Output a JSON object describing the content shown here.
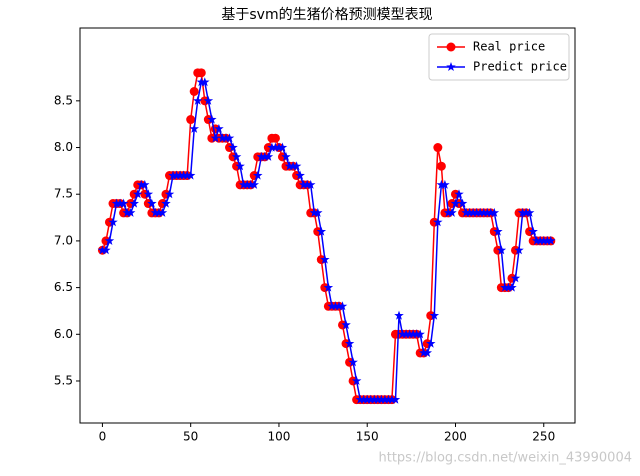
{
  "chart_data": {
    "type": "line",
    "title": "基于svm的生猪价格预测模型表现",
    "watermark": "https://blog.csdn.net/weixin_43990004",
    "x": [
      0,
      2,
      4,
      6,
      8,
      10,
      12,
      14,
      16,
      18,
      20,
      22,
      24,
      26,
      28,
      30,
      32,
      34,
      36,
      38,
      40,
      42,
      44,
      46,
      48,
      50,
      52,
      54,
      56,
      58,
      60,
      62,
      64,
      66,
      68,
      70,
      72,
      74,
      76,
      78,
      80,
      82,
      84,
      86,
      88,
      90,
      92,
      94,
      96,
      98,
      100,
      102,
      104,
      106,
      108,
      110,
      112,
      114,
      116,
      118,
      120,
      122,
      124,
      126,
      128,
      130,
      132,
      134,
      136,
      138,
      140,
      142,
      144,
      146,
      148,
      150,
      152,
      154,
      156,
      158,
      160,
      162,
      164,
      166,
      168,
      170,
      172,
      174,
      176,
      178,
      180,
      182,
      184,
      186,
      188,
      190,
      192,
      194,
      196,
      198,
      200,
      202,
      204,
      206,
      208,
      210,
      212,
      214,
      216,
      218,
      220,
      222,
      224,
      226,
      228,
      230,
      232,
      234,
      236,
      238,
      240,
      242,
      244,
      246,
      248,
      250,
      252,
      254
    ],
    "series": [
      {
        "name": "Real price",
        "color": "#ff0000",
        "marker": "circle",
        "values": [
          6.9,
          7.0,
          7.2,
          7.4,
          7.4,
          7.4,
          7.3,
          7.3,
          7.4,
          7.5,
          7.6,
          7.6,
          7.5,
          7.4,
          7.3,
          7.3,
          7.3,
          7.4,
          7.5,
          7.7,
          7.7,
          7.7,
          7.7,
          7.7,
          7.7,
          8.3,
          8.6,
          8.8,
          8.8,
          8.5,
          8.3,
          8.1,
          8.2,
          8.1,
          8.1,
          8.1,
          8.0,
          7.9,
          7.8,
          7.6,
          7.6,
          7.6,
          7.6,
          7.7,
          7.9,
          7.9,
          7.9,
          8.0,
          8.1,
          8.1,
          8.0,
          7.9,
          7.8,
          7.8,
          7.8,
          7.7,
          7.6,
          7.6,
          7.6,
          7.3,
          7.3,
          7.1,
          6.8,
          6.5,
          6.3,
          6.3,
          6.3,
          6.3,
          6.1,
          5.9,
          5.7,
          5.5,
          5.3,
          5.3,
          5.3,
          5.3,
          5.3,
          5.3,
          5.3,
          5.3,
          5.3,
          5.3,
          5.3,
          6.0,
          6.0,
          6.0,
          6.0,
          6.0,
          6.0,
          6.0,
          5.8,
          5.8,
          5.9,
          6.2,
          7.2,
          8.0,
          7.8,
          7.3,
          7.3,
          7.4,
          7.5,
          7.4,
          7.3,
          7.3,
          7.3,
          7.3,
          7.3,
          7.3,
          7.3,
          7.3,
          7.3,
          7.1,
          6.9,
          6.5,
          6.5,
          6.5,
          6.6,
          6.9,
          7.3,
          7.3,
          7.3,
          7.1,
          7.0,
          7.0,
          7.0,
          7.0,
          7.0,
          7.0
        ]
      },
      {
        "name": "Predict price",
        "color": "#0000ff",
        "marker": "star",
        "values": [
          6.9,
          6.9,
          7.0,
          7.2,
          7.4,
          7.4,
          7.4,
          7.3,
          7.3,
          7.4,
          7.5,
          7.6,
          7.6,
          7.5,
          7.4,
          7.3,
          7.3,
          7.3,
          7.4,
          7.5,
          7.7,
          7.7,
          7.7,
          7.7,
          7.7,
          7.7,
          8.2,
          8.5,
          8.7,
          8.7,
          8.5,
          8.3,
          8.1,
          8.2,
          8.1,
          8.1,
          8.1,
          8.0,
          7.9,
          7.8,
          7.6,
          7.6,
          7.6,
          7.6,
          7.7,
          7.9,
          7.9,
          7.9,
          8.0,
          8.0,
          8.0,
          8.0,
          7.9,
          7.8,
          7.8,
          7.8,
          7.7,
          7.6,
          7.6,
          7.6,
          7.3,
          7.3,
          7.1,
          6.8,
          6.5,
          6.3,
          6.3,
          6.3,
          6.3,
          6.1,
          5.9,
          5.7,
          5.5,
          5.3,
          5.3,
          5.3,
          5.3,
          5.3,
          5.3,
          5.3,
          5.3,
          5.3,
          5.3,
          5.3,
          6.2,
          6.0,
          6.0,
          6.0,
          6.0,
          6.0,
          6.0,
          5.8,
          5.8,
          5.9,
          6.2,
          7.2,
          7.6,
          7.6,
          7.3,
          7.3,
          7.4,
          7.5,
          7.4,
          7.3,
          7.3,
          7.3,
          7.3,
          7.3,
          7.3,
          7.3,
          7.3,
          7.3,
          7.1,
          6.9,
          6.5,
          6.5,
          6.5,
          6.6,
          6.9,
          7.3,
          7.3,
          7.3,
          7.1,
          7.0,
          7.0,
          7.0,
          7.0,
          7.0
        ]
      }
    ],
    "xlim": [
      -12.7,
      267.7
    ],
    "xticks": [
      0,
      50,
      100,
      150,
      200,
      250
    ],
    "ylim": [
      5.05,
      9.28
    ],
    "yticks": [
      {
        "value": 5.5,
        "label": "5.5"
      },
      {
        "value": 6,
        "label": "6.0"
      },
      {
        "value": 6.5,
        "label": "6.5"
      },
      {
        "value": 7,
        "label": "7.0"
      },
      {
        "value": 7.5,
        "label": "7.5"
      },
      {
        "value": 8,
        "label": "8.0"
      },
      {
        "value": 8.5,
        "label": "8.5"
      }
    ],
    "legend": "upper right"
  }
}
